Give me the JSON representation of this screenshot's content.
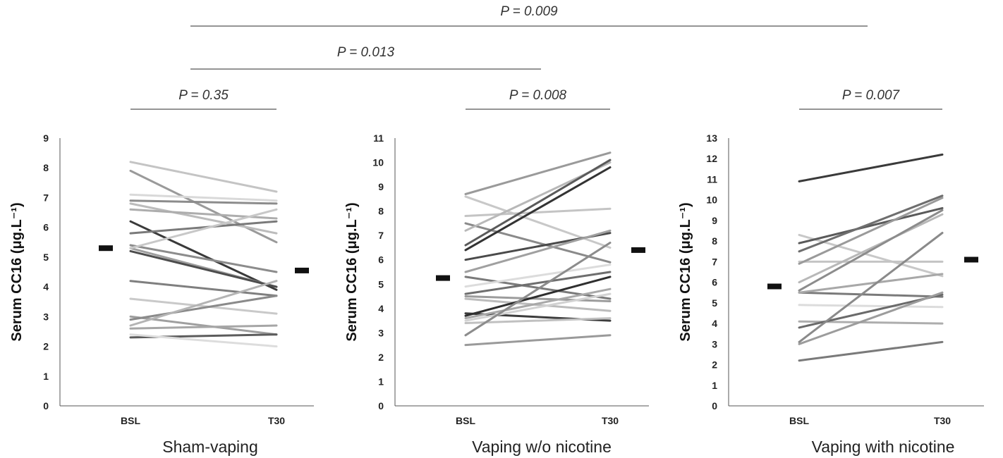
{
  "comparisons": [
    {
      "label": "P = 0.009"
    },
    {
      "label": "P = 0.013"
    }
  ],
  "chart_data": [
    {
      "type": "line",
      "title": "Sham-vaping",
      "ylabel": "Serum CC16  (μg.L⁻¹)",
      "categories": [
        "BSL",
        "T30"
      ],
      "ylim": [
        0,
        9
      ],
      "yticks": [
        "0",
        "1",
        "2",
        "3",
        "4",
        "5",
        "6",
        "7",
        "8",
        "9"
      ],
      "pvalue": "P = 0.35",
      "group_means": [
        5.3,
        4.55
      ],
      "series": [
        {
          "values": [
            8.2,
            7.2
          ],
          "color": "#c4c4c4"
        },
        {
          "values": [
            7.9,
            5.5
          ],
          "color": "#9a9a9a"
        },
        {
          "values": [
            7.1,
            6.9
          ],
          "color": "#d9d9d9"
        },
        {
          "values": [
            6.9,
            6.8
          ],
          "color": "#8c8c8c"
        },
        {
          "values": [
            6.8,
            5.8
          ],
          "color": "#bcbcbc"
        },
        {
          "values": [
            6.6,
            6.3
          ],
          "color": "#adadad"
        },
        {
          "values": [
            6.2,
            3.9
          ],
          "color": "#3a3a3a"
        },
        {
          "values": [
            5.8,
            6.2
          ],
          "color": "#7a7a7a"
        },
        {
          "values": [
            5.4,
            4.5
          ],
          "color": "#8c8c8c"
        },
        {
          "values": [
            5.3,
            4.0
          ],
          "color": "#9e9e9e"
        },
        {
          "values": [
            5.3,
            6.6
          ],
          "color": "#c8c8c8"
        },
        {
          "values": [
            5.2,
            4.0
          ],
          "color": "#4d4d4d"
        },
        {
          "values": [
            4.2,
            3.7
          ],
          "color": "#7f7f7f"
        },
        {
          "values": [
            3.6,
            3.1
          ],
          "color": "#c9c9c9"
        },
        {
          "values": [
            3.0,
            2.4
          ],
          "color": "#9f9f9f"
        },
        {
          "values": [
            2.9,
            3.7
          ],
          "color": "#8a8a8a"
        },
        {
          "values": [
            2.7,
            4.2
          ],
          "color": "#b4b4b4"
        },
        {
          "values": [
            2.6,
            2.7
          ],
          "color": "#a6a6a6"
        },
        {
          "values": [
            2.3,
            2.4
          ],
          "color": "#5c5c5c"
        },
        {
          "values": [
            2.4,
            2.0
          ],
          "color": "#dddddd"
        }
      ]
    },
    {
      "type": "line",
      "title": "Vaping w/o nicotine",
      "ylabel": "Serum CC16  (μg.L⁻¹)",
      "categories": [
        "BSL",
        "T30"
      ],
      "ylim": [
        0,
        11
      ],
      "yticks": [
        "0",
        "1",
        "2",
        "3",
        "4",
        "5",
        "6",
        "7",
        "8",
        "9",
        "10",
        "11"
      ],
      "pvalue": "P = 0.008",
      "group_means": [
        5.25,
        6.4
      ],
      "series": [
        {
          "values": [
            8.7,
            10.4
          ],
          "color": "#9a9a9a"
        },
        {
          "values": [
            8.6,
            6.5
          ],
          "color": "#c8c8c8"
        },
        {
          "values": [
            7.8,
            8.1
          ],
          "color": "#c4c4c4"
        },
        {
          "values": [
            7.5,
            5.9
          ],
          "color": "#8a8a8a"
        },
        {
          "values": [
            7.2,
            10.0
          ],
          "color": "#b8b8b8"
        },
        {
          "values": [
            6.6,
            10.1
          ],
          "color": "#5a5a5a"
        },
        {
          "values": [
            6.4,
            9.8
          ],
          "color": "#333333"
        },
        {
          "values": [
            6.0,
            7.1
          ],
          "color": "#4a4a4a"
        },
        {
          "values": [
            5.5,
            7.2
          ],
          "color": "#a0a0a0"
        },
        {
          "values": [
            5.3,
            4.4
          ],
          "color": "#7a7a7a"
        },
        {
          "values": [
            4.9,
            5.8
          ],
          "color": "#dcdcdc"
        },
        {
          "values": [
            4.6,
            5.5
          ],
          "color": "#6e6e6e"
        },
        {
          "values": [
            4.5,
            4.3
          ],
          "color": "#9c9c9c"
        },
        {
          "values": [
            4.4,
            3.9
          ],
          "color": "#bcbcbc"
        },
        {
          "values": [
            3.8,
            3.5
          ],
          "color": "#3c3c3c"
        },
        {
          "values": [
            3.7,
            5.3
          ],
          "color": "#2f2f2f"
        },
        {
          "values": [
            3.6,
            4.8
          ],
          "color": "#a8a8a8"
        },
        {
          "values": [
            3.5,
            4.6
          ],
          "color": "#d2d2d2"
        },
        {
          "values": [
            3.4,
            3.6
          ],
          "color": "#c0c0c0"
        },
        {
          "values": [
            2.9,
            6.7
          ],
          "color": "#8c8c8c"
        },
        {
          "values": [
            2.5,
            2.9
          ],
          "color": "#9a9a9a"
        }
      ]
    },
    {
      "type": "line",
      "title": "Vaping with nicotine",
      "ylabel": "Serum CC16  (μg.L⁻¹)",
      "categories": [
        "BSL",
        "T30"
      ],
      "ylim": [
        0,
        13
      ],
      "yticks": [
        "0",
        "1",
        "2",
        "3",
        "4",
        "5",
        "6",
        "7",
        "8",
        "9",
        "10",
        "11",
        "12",
        "13"
      ],
      "pvalue": "P = 0.007",
      "group_means": [
        5.8,
        7.1
      ],
      "series": [
        {
          "values": [
            10.9,
            12.2
          ],
          "color": "#3a3a3a"
        },
        {
          "values": [
            8.3,
            6.3
          ],
          "color": "#c8c8c8"
        },
        {
          "values": [
            7.9,
            9.6
          ],
          "color": "#5a5a5a"
        },
        {
          "values": [
            7.5,
            10.2
          ],
          "color": "#6e6e6e"
        },
        {
          "values": [
            7.0,
            7.0
          ],
          "color": "#c4c4c4"
        },
        {
          "values": [
            6.9,
            10.1
          ],
          "color": "#9a9a9a"
        },
        {
          "values": [
            6.0,
            9.3
          ],
          "color": "#b8b8b8"
        },
        {
          "values": [
            5.6,
            9.5
          ],
          "color": "#8c8c8c"
        },
        {
          "values": [
            5.5,
            5.3
          ],
          "color": "#7a7a7a"
        },
        {
          "values": [
            5.5,
            6.4
          ],
          "color": "#a8a8a8"
        },
        {
          "values": [
            4.9,
            4.8
          ],
          "color": "#dcdcdc"
        },
        {
          "values": [
            4.1,
            4.0
          ],
          "color": "#adadad"
        },
        {
          "values": [
            3.8,
            5.4
          ],
          "color": "#6a6a6a"
        },
        {
          "values": [
            3.1,
            8.4
          ],
          "color": "#8a8a8a"
        },
        {
          "values": [
            3.0,
            5.5
          ],
          "color": "#9c9c9c"
        },
        {
          "values": [
            2.2,
            3.1
          ],
          "color": "#7a7a7a"
        }
      ]
    }
  ]
}
